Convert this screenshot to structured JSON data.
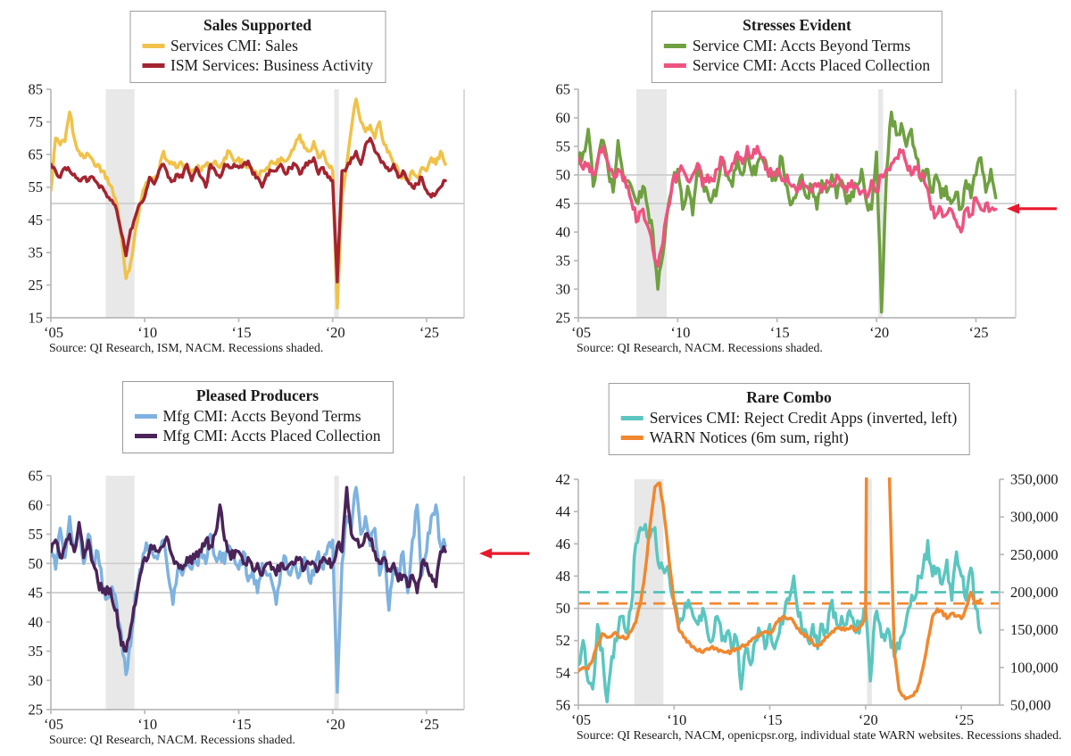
{
  "arrow_color": "#E8192C",
  "recession_color": "#E8E8E8",
  "chart_data": [
    {
      "type": "line",
      "title": "Sales Supported",
      "x_start": 2005,
      "x_step": 0.25,
      "x_max": 2027,
      "x_ticks": [
        2005,
        2010,
        2015,
        2020,
        2025
      ],
      "x_tick_labels": [
        "‘05",
        "‘10",
        "‘15",
        "‘20",
        "‘25"
      ],
      "y_left": {
        "min": 15,
        "max": 85,
        "tick_step": 10,
        "tick_labels": [
          "15",
          "25",
          "35",
          "45",
          "55",
          "65",
          "75",
          "85"
        ]
      },
      "gridlines": [
        {
          "axis": "left",
          "value": 50
        }
      ],
      "recessions": [
        [
          2007.92,
          2009.45
        ],
        [
          2020.08,
          2020.33
        ]
      ],
      "series": [
        {
          "name": "Services CMI: Sales",
          "color": "#F0C24A",
          "axis": "left",
          "values": [
            54,
            70,
            68,
            69,
            78,
            70,
            66,
            64,
            65,
            63,
            62,
            60,
            58,
            55,
            50,
            40,
            27,
            32,
            42,
            50,
            55,
            58,
            57,
            60,
            66,
            63,
            62,
            61,
            62,
            61,
            60,
            61,
            60,
            62,
            61,
            63,
            61,
            64,
            66,
            63,
            64,
            62,
            61,
            60,
            58,
            60,
            61,
            63,
            62,
            64,
            63,
            65,
            68,
            71,
            67,
            66,
            69,
            64,
            66,
            62,
            60,
            18,
            52,
            62,
            73,
            82,
            75,
            72,
            74,
            70,
            75,
            68,
            66,
            62,
            60,
            58,
            57,
            60,
            58,
            61,
            60,
            64,
            62,
            66,
            62
          ]
        },
        {
          "name": "ISM Services: Business Activity",
          "color": "#A32430",
          "axis": "left",
          "values": [
            62,
            60,
            58,
            61,
            60,
            59,
            57,
            58,
            57,
            58,
            56,
            55,
            52,
            51,
            48,
            41,
            34,
            42,
            46,
            50,
            52,
            58,
            56,
            60,
            62,
            58,
            57,
            59,
            58,
            62,
            57,
            61,
            58,
            55,
            62,
            60,
            58,
            62,
            61,
            62,
            61,
            62,
            63,
            59,
            58,
            55,
            59,
            60,
            60,
            62,
            59,
            61,
            62,
            59,
            61,
            63,
            64,
            59,
            61,
            58,
            57,
            26,
            60,
            61,
            64,
            66,
            62,
            68,
            70,
            66,
            64,
            62,
            60,
            62,
            58,
            60,
            57,
            55,
            56,
            58,
            54,
            52,
            53,
            55,
            57
          ]
        }
      ],
      "arrow": null,
      "source": "Source: QI Research, ISM, NACM. Recessions shaded."
    },
    {
      "type": "line",
      "title": "Stresses Evident",
      "x_start": 2005,
      "x_step": 0.25,
      "x_max": 2027,
      "x_ticks": [
        2005,
        2010,
        2015,
        2020,
        2025
      ],
      "x_tick_labels": [
        "‘05",
        "‘10",
        "‘15",
        "‘20",
        "‘25"
      ],
      "y_left": {
        "min": 25,
        "max": 65,
        "tick_step": 5,
        "tick_labels": [
          "25",
          "30",
          "35",
          "40",
          "45",
          "50",
          "55",
          "60",
          "65"
        ]
      },
      "gridlines": [
        {
          "axis": "left",
          "value": 45
        },
        {
          "axis": "left",
          "value": 50
        }
      ],
      "recessions": [
        [
          2007.92,
          2009.45
        ],
        [
          2020.08,
          2020.33
        ]
      ],
      "series": [
        {
          "name": "Service CMI: Accts Beyond Terms",
          "color": "#6FA041",
          "axis": "left",
          "values": [
            52,
            54,
            58,
            48,
            53,
            56,
            51,
            47,
            56,
            50,
            49,
            47,
            45,
            48,
            44,
            40,
            30,
            36,
            44,
            49,
            51,
            44,
            48,
            43,
            52,
            49,
            47,
            46,
            48,
            52,
            50,
            48,
            53,
            50,
            54,
            50,
            52,
            53,
            51,
            49,
            50,
            53,
            48,
            45,
            47,
            50,
            46,
            48,
            44,
            49,
            47,
            50,
            46,
            49,
            45,
            47,
            48,
            51,
            45,
            44,
            54,
            26,
            50,
            61,
            57,
            59,
            55,
            58,
            53,
            49,
            51,
            47,
            50,
            46,
            48,
            45,
            47,
            44,
            49,
            46,
            50,
            53,
            47,
            51,
            46
          ]
        },
        {
          "name": "Service CMI: Accts Placed Collection",
          "color": "#EE5380",
          "axis": "left",
          "values": [
            53,
            51,
            52,
            50,
            53,
            55,
            52,
            50,
            51,
            49,
            48,
            44,
            42,
            44,
            41,
            37,
            34,
            38,
            44,
            49,
            50,
            51,
            49,
            50,
            52,
            48,
            50,
            49,
            51,
            53,
            50,
            52,
            54,
            52,
            55,
            53,
            55,
            53,
            51,
            50,
            51,
            49,
            50,
            48,
            47,
            49,
            48,
            47,
            48,
            47,
            49,
            48,
            50,
            48,
            47,
            49,
            48,
            47,
            46,
            49,
            47,
            50,
            51,
            52,
            53,
            54,
            52,
            50,
            51,
            50,
            48,
            44,
            43,
            44,
            43,
            44,
            42,
            40,
            44,
            43,
            46,
            44,
            45,
            44,
            44
          ]
        }
      ],
      "arrow": {
        "axis": "left",
        "value": 44.1
      },
      "source": "Source: QI Research, NACM. Recessions shaded."
    },
    {
      "type": "line",
      "title": "Pleased Producers",
      "x_start": 2005,
      "x_step": 0.25,
      "x_max": 2027,
      "x_ticks": [
        2005,
        2010,
        2015,
        2020,
        2025
      ],
      "x_tick_labels": [
        "‘05",
        "‘10",
        "‘15",
        "‘20",
        "‘25"
      ],
      "y_left": {
        "min": 25,
        "max": 65,
        "tick_step": 5,
        "tick_labels": [
          "25",
          "30",
          "35",
          "40",
          "45",
          "50",
          "55",
          "60",
          "65"
        ]
      },
      "gridlines": [
        {
          "axis": "left",
          "value": 45
        },
        {
          "axis": "left",
          "value": 50
        }
      ],
      "recessions": [
        [
          2007.92,
          2009.45
        ],
        [
          2020.08,
          2020.33
        ]
      ],
      "series": [
        {
          "name": "Mfg CMI: Accts Beyond Terms",
          "color": "#7EB2DF",
          "axis": "left",
          "values": [
            53,
            49,
            56,
            51,
            58,
            52,
            55,
            50,
            55,
            50,
            52,
            46,
            44,
            46,
            43,
            38,
            31,
            36,
            45,
            49,
            52,
            53,
            51,
            52,
            54,
            48,
            43,
            49,
            48,
            51,
            49,
            50,
            52,
            50,
            55,
            51,
            52,
            50,
            53,
            51,
            49,
            52,
            47,
            49,
            45,
            50,
            48,
            47,
            43,
            49,
            51,
            48,
            50,
            48,
            51,
            47,
            48,
            52,
            49,
            53,
            54,
            28,
            50,
            58,
            56,
            63,
            55,
            58,
            53,
            56,
            48,
            52,
            42,
            50,
            47,
            52,
            45,
            54,
            60,
            48,
            52,
            58,
            60,
            53,
            53
          ]
        },
        {
          "name": "Mfg CMI: Accts Placed Collection",
          "color": "#4A2358",
          "axis": "left",
          "values": [
            52,
            54,
            51,
            53,
            55,
            52,
            57,
            51,
            54,
            50,
            47,
            45,
            46,
            44,
            42,
            36,
            35,
            39,
            43,
            48,
            51,
            52,
            53,
            52,
            53,
            54,
            51,
            50,
            49,
            51,
            50,
            52,
            52,
            54,
            53,
            55,
            60,
            54,
            52,
            51,
            52,
            50,
            51,
            49,
            50,
            48,
            50,
            49,
            48,
            50,
            49,
            50,
            50,
            51,
            49,
            50,
            50,
            49,
            51,
            50,
            50,
            53,
            52,
            63,
            55,
            54,
            53,
            55,
            54,
            52,
            50,
            51,
            49,
            50,
            47,
            48,
            46,
            48,
            45,
            50,
            50,
            48,
            46,
            52,
            52
          ]
        }
      ],
      "arrow": {
        "axis": "left",
        "value": 51.7
      },
      "source": "Source: QI Research, NACM. Recessions shaded."
    },
    {
      "type": "line",
      "title": "Rare Combo",
      "x_start": 2005,
      "x_step": 0.25,
      "x_max": 2027,
      "x_ticks": [
        2005,
        2010,
        2015,
        2020,
        2025
      ],
      "x_tick_labels": [
        "‘05",
        "‘10",
        "‘15",
        "‘20",
        "‘25"
      ],
      "y_left": {
        "min": 42,
        "max": 56,
        "inverted": true,
        "tick_step": 2,
        "tick_labels": [
          "42",
          "44",
          "46",
          "48",
          "50",
          "52",
          "54",
          "56"
        ]
      },
      "y_right": {
        "min": 50000,
        "max": 350000,
        "tick_step": 50000,
        "tick_labels": [
          "50,000",
          "100,000",
          "150,000",
          "200,000",
          "250,000",
          "300,000",
          "350,000"
        ]
      },
      "gridlines": [
        {
          "axis": "left",
          "value": 50
        }
      ],
      "dashed_lines": [
        {
          "axis": "left",
          "value": 49.0,
          "color": "#4FC2BA"
        },
        {
          "axis": "right",
          "value": 185000,
          "color": "#F0882F"
        }
      ],
      "recessions": [
        [
          2007.92,
          2009.45
        ],
        [
          2020.08,
          2020.33
        ]
      ],
      "series": [
        {
          "name": "Services CMI: Reject Credit Apps (inverted, left)",
          "color": "#5BC6C0",
          "axis": "left",
          "values": [
            53.5,
            52,
            54.5,
            55,
            51,
            52.5,
            55.8,
            53,
            52,
            50.5,
            51.5,
            50,
            46,
            45,
            44.8,
            45.5,
            45,
            47.5,
            47.8,
            48,
            49.5,
            51,
            50.5,
            49.5,
            50.5,
            51,
            50,
            51.5,
            52,
            50.5,
            52,
            51.5,
            52.5,
            51.8,
            55,
            52.5,
            53.5,
            52,
            51.5,
            52.5,
            51,
            52.5,
            51.5,
            50.5,
            49.5,
            48,
            50.5,
            51.5,
            52,
            51,
            52.5,
            51,
            51.5,
            49.5,
            51,
            50.5,
            51,
            50.5,
            51.5,
            50.8,
            50,
            54.5,
            50.5,
            51,
            52,
            51.5,
            53,
            52.5,
            51.5,
            50,
            49.5,
            48,
            47.5,
            45.8,
            48,
            47.5,
            48.5,
            47,
            49.5,
            46.5,
            48,
            49.5,
            47.5,
            50,
            51.5
          ]
        },
        {
          "name": "WARN Notices (6m sum, right)",
          "color": "#F0882F",
          "axis": "right",
          "values": [
            95000,
            100000,
            98000,
            110000,
            130000,
            145000,
            140000,
            142000,
            145000,
            140000,
            138000,
            148000,
            160000,
            185000,
            230000,
            290000,
            340000,
            345000,
            300000,
            240000,
            185000,
            150000,
            140000,
            135000,
            128000,
            122000,
            120000,
            125000,
            128000,
            125000,
            122000,
            120000,
            122000,
            125000,
            128000,
            130000,
            135000,
            140000,
            145000,
            148000,
            145000,
            155000,
            165000,
            168000,
            165000,
            160000,
            152000,
            145000,
            140000,
            132000,
            128000,
            135000,
            140000,
            148000,
            152000,
            150000,
            152000,
            155000,
            150000,
            155000,
            165000,
            1200000,
            1500000,
            1400000,
            1100000,
            350000,
            120000,
            70000,
            62000,
            60000,
            63000,
            75000,
            100000,
            135000,
            168000,
            178000,
            175000,
            165000,
            172000,
            168000,
            165000,
            180000,
            200000,
            185000,
            190000
          ]
        }
      ],
      "arrow": null,
      "source": "Source: QI Research, NACM, openicpsr.org, individual state WARN websites. Recessions shaded."
    }
  ]
}
